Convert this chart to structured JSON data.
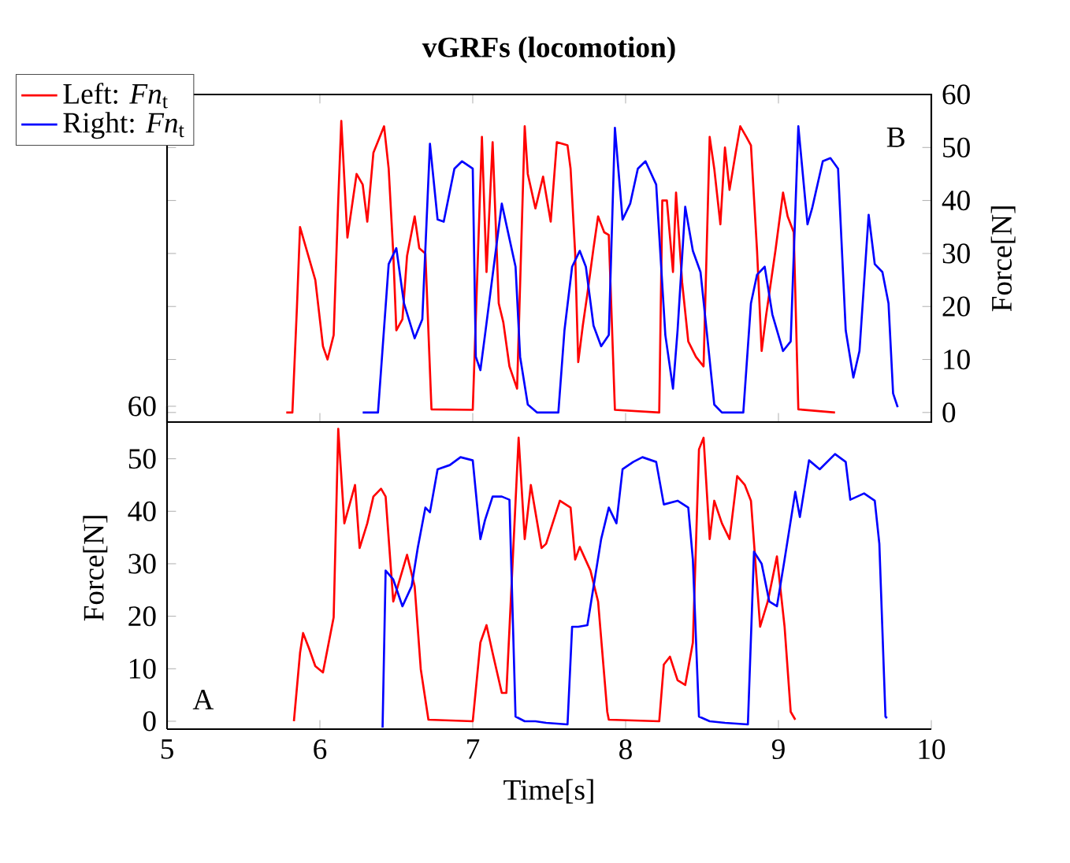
{
  "chart_data": [
    {
      "type": "line",
      "title": "vGRFs (locomotion)",
      "ylabel": "Force[N]",
      "annotations": [
        "B"
      ],
      "xlim": [
        5,
        10
      ],
      "xticks": [
        5,
        6,
        7,
        8,
        9,
        10
      ],
      "ylim": [
        -1.8,
        60
      ],
      "yticks": [
        0,
        10,
        20,
        30,
        40,
        50,
        60
      ],
      "tick_labels": "y",
      "legend": "top left",
      "marker": "none",
      "line_style": "solid",
      "series": [
        {
          "name": "Left: *Fn*$_{t}$",
          "color": "#ff0000",
          "x": [
            5.78,
            5.82,
            5.85,
            5.87,
            5.92,
            5.97,
            6.02,
            6.05,
            6.09,
            6.12,
            6.14,
            6.18,
            6.24,
            6.28,
            6.31,
            6.35,
            6.42,
            6.45,
            6.48,
            6.5,
            6.54,
            6.57,
            6.62,
            6.65,
            6.69,
            6.73,
            7.0,
            7.06,
            7.09,
            7.13,
            7.17,
            7.2,
            7.24,
            7.29,
            7.34,
            7.36,
            7.41,
            7.46,
            7.51,
            7.55,
            7.62,
            7.64,
            7.67,
            7.69,
            7.72,
            7.75,
            7.79,
            7.82,
            7.86,
            7.89,
            7.93,
            8.22,
            8.24,
            8.27,
            8.31,
            8.33,
            8.37,
            8.41,
            8.46,
            8.51,
            8.55,
            8.58,
            8.62,
            8.65,
            8.68,
            8.72,
            8.75,
            8.79,
            8.82,
            8.86,
            8.89,
            8.92,
            8.98,
            9.03,
            9.06,
            9.1,
            9.13,
            9.37
          ],
          "values": [
            0,
            0,
            20,
            35,
            30,
            25,
            12.5,
            10,
            14.6,
            40,
            55,
            33,
            45,
            43,
            36,
            49,
            54,
            46,
            30,
            15.5,
            17.6,
            29.5,
            37,
            31,
            30,
            0.6,
            0.5,
            52,
            26.5,
            51,
            20.6,
            17,
            8.7,
            4.5,
            54,
            45,
            38.5,
            44.5,
            36,
            51,
            50.4,
            46,
            30,
            9.5,
            16.4,
            22.4,
            31,
            37,
            34,
            33.5,
            0.5,
            0,
            40,
            40,
            26.5,
            41.5,
            24.5,
            13.4,
            10.5,
            8.7,
            52,
            46,
            35.5,
            50,
            42,
            49,
            54,
            52,
            50.4,
            30.5,
            11.6,
            18.5,
            30.5,
            41.5,
            37,
            34,
            0.6,
            0
          ]
        },
        {
          "name": "Right: *Fn*$_{t}$",
          "color": "#0000ff",
          "x": [
            6.28,
            6.38,
            6.45,
            6.5,
            6.55,
            6.62,
            6.67,
            6.72,
            6.77,
            6.81,
            6.88,
            6.93,
            7.0,
            7.02,
            7.05,
            7.08,
            7.19,
            7.28,
            7.31,
            7.36,
            7.42,
            7.56,
            7.6,
            7.65,
            7.7,
            7.74,
            7.79,
            7.84,
            7.89,
            7.93,
            7.98,
            8.03,
            8.08,
            8.13,
            8.2,
            8.26,
            8.31,
            8.34,
            8.39,
            8.44,
            8.49,
            8.53,
            8.58,
            8.63,
            8.77,
            8.82,
            8.86,
            8.91,
            8.96,
            9.03,
            9.08,
            9.13,
            9.19,
            9.22,
            9.29,
            9.34,
            9.39,
            9.44,
            9.49,
            9.53,
            9.59,
            9.63,
            9.68,
            9.72,
            9.75,
            9.78
          ],
          "values": [
            0,
            0,
            28,
            31,
            20.6,
            14,
            17.6,
            50.7,
            36.4,
            36,
            46,
            47.4,
            46,
            10.5,
            8,
            14.6,
            39.4,
            27.5,
            10.5,
            1.5,
            0,
            0,
            15.5,
            27.5,
            30.5,
            27.5,
            16.4,
            12.5,
            14.6,
            53.7,
            36.4,
            39.4,
            46,
            47.4,
            43,
            14.6,
            4.5,
            15.5,
            38.8,
            30.5,
            26.5,
            15.5,
            1.5,
            0,
            0,
            20.6,
            26,
            27.5,
            18.5,
            11.6,
            13.4,
            54,
            35.5,
            38.5,
            47.4,
            48,
            46,
            15.5,
            6.6,
            11.6,
            37.3,
            28,
            26.5,
            20.6,
            3.6,
            1
          ]
        }
      ]
    },
    {
      "type": "line",
      "xlabel": "Time[s]",
      "ylabel": "Force[N]",
      "annotations": [
        "A"
      ],
      "xlim": [
        5,
        10
      ],
      "xticks": [
        5,
        6,
        7,
        8,
        9,
        10
      ],
      "ylim": [
        -1.5,
        60
      ],
      "yticks": [
        0,
        10,
        20,
        30,
        40,
        50,
        60
      ],
      "marker": "none",
      "line_style": "solid",
      "series": [
        {
          "color": "#ff0000",
          "x": [
            5.83,
            5.87,
            5.89,
            5.93,
            5.97,
            6.02,
            6.05,
            6.09,
            6.12,
            6.16,
            6.23,
            6.26,
            6.31,
            6.35,
            6.4,
            6.43,
            6.48,
            6.57,
            6.62,
            6.66,
            6.71,
            7.0,
            7.05,
            7.09,
            7.13,
            7.19,
            7.22,
            7.3,
            7.34,
            7.38,
            7.45,
            7.48,
            7.57,
            7.64,
            7.67,
            7.7,
            7.77,
            7.82,
            7.88,
            7.89,
            8.22,
            8.25,
            8.29,
            8.34,
            8.39,
            8.44,
            8.48,
            8.51,
            8.55,
            8.58,
            8.63,
            8.68,
            8.73,
            8.78,
            8.82,
            8.88,
            8.93,
            8.99,
            9.04,
            9.08,
            9.11
          ],
          "values": [
            0,
            13,
            16.8,
            13.8,
            10.5,
            9.3,
            13.8,
            19.8,
            55.7,
            37.7,
            45,
            33,
            37.7,
            42.8,
            44.3,
            42.8,
            22.8,
            31.7,
            25.7,
            9.9,
            0.3,
            0,
            15,
            18.3,
            13,
            5.4,
            5.4,
            54,
            34.7,
            45,
            33,
            33.8,
            42,
            40.7,
            30.8,
            33.2,
            28.7,
            22.8,
            1.8,
            0.3,
            0,
            10.8,
            12.3,
            7.8,
            6.9,
            15,
            51.8,
            54,
            34.7,
            42,
            37.7,
            34.7,
            46.7,
            45,
            42,
            18,
            22.8,
            31.4,
            18,
            1.8,
            0.3
          ]
        },
        {
          "color": "#0000ff",
          "x": [
            6.41,
            6.43,
            6.48,
            6.54,
            6.6,
            6.64,
            6.69,
            6.72,
            6.77,
            6.85,
            6.92,
            7.0,
            7.05,
            7.08,
            7.13,
            7.19,
            7.24,
            7.28,
            7.34,
            7.41,
            7.48,
            7.62,
            7.65,
            7.69,
            7.75,
            7.84,
            7.89,
            7.94,
            7.98,
            8.05,
            8.11,
            8.2,
            8.25,
            8.34,
            8.41,
            8.44,
            8.48,
            8.55,
            8.65,
            8.8,
            8.84,
            8.89,
            8.94,
            8.99,
            9.04,
            9.11,
            9.14,
            9.2,
            9.27,
            9.37,
            9.44,
            9.47,
            9.56,
            9.63,
            9.66,
            9.7,
            9.71
          ],
          "values": [
            -1.2,
            28.7,
            27,
            21.9,
            25.7,
            33,
            40.7,
            39.8,
            48,
            48.8,
            50.3,
            49.7,
            34.7,
            38.3,
            42.8,
            42.8,
            42.2,
            0.9,
            0,
            0,
            -0.3,
            -0.6,
            18,
            18,
            18.3,
            34.7,
            40.7,
            37.7,
            48,
            49.4,
            50.3,
            49.4,
            41.3,
            42,
            40.7,
            30.8,
            0.9,
            0,
            -0.3,
            -0.6,
            32.3,
            30,
            22.8,
            21.9,
            30.8,
            43.7,
            38.9,
            49.7,
            48,
            50.9,
            49.4,
            42.2,
            43.4,
            42,
            33.8,
            0.9,
            0.6
          ]
        }
      ]
    }
  ]
}
